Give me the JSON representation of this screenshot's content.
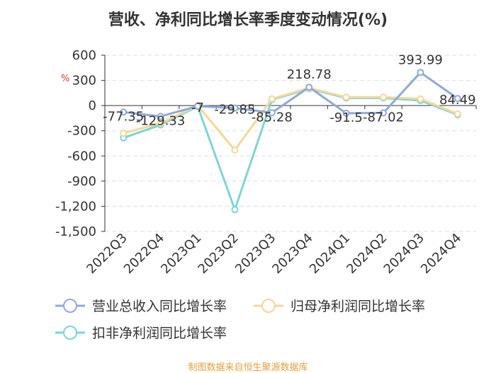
{
  "title": "营收、净利同比增长率季度变动情况(%)",
  "unit": "%",
  "source": "制图数据来自恒生聚源数据库",
  "chart_data": {
    "type": "line",
    "title": "营收、净利同比增长率季度变动情况(%)",
    "categories": [
      "2022Q3",
      "2022Q4",
      "2023Q1",
      "2023Q2",
      "2023Q3",
      "2023Q4",
      "2024Q1",
      "2024Q2",
      "2024Q3",
      "2024Q4"
    ],
    "y_ticks": [
      "600",
      "300",
      "0",
      "-300",
      "-600",
      "-900",
      "-1,200",
      "-1,500"
    ],
    "ylim": [
      -1500,
      600
    ],
    "grid": "horizontal dashed",
    "legend_position": "bottom",
    "series": [
      {
        "name": "营业总收入同比增长率",
        "color": "#8fa9d8",
        "values": [
          -77.35,
          -129.33,
          -7,
          -29.85,
          -85.28,
          218.78,
          -91.5,
          -87.02,
          393.99,
          84.49
        ],
        "labels": [
          "-77.35",
          "-129.33",
          "-7",
          "-29.85",
          "-85.28",
          "218.78",
          "-91.5",
          "-87.02",
          "393.99",
          "84.49"
        ]
      },
      {
        "name": "归母净利润同比增长率",
        "color": "#f6d79a",
        "values": [
          -330,
          -210,
          0,
          -530,
          80,
          210,
          100,
          100,
          80,
          -100
        ]
      },
      {
        "name": "扣非净利润同比增长率",
        "color": "#7fd4d4",
        "values": [
          -385,
          -230,
          -10,
          -1240,
          70,
          200,
          90,
          90,
          60,
          -110
        ]
      }
    ]
  }
}
